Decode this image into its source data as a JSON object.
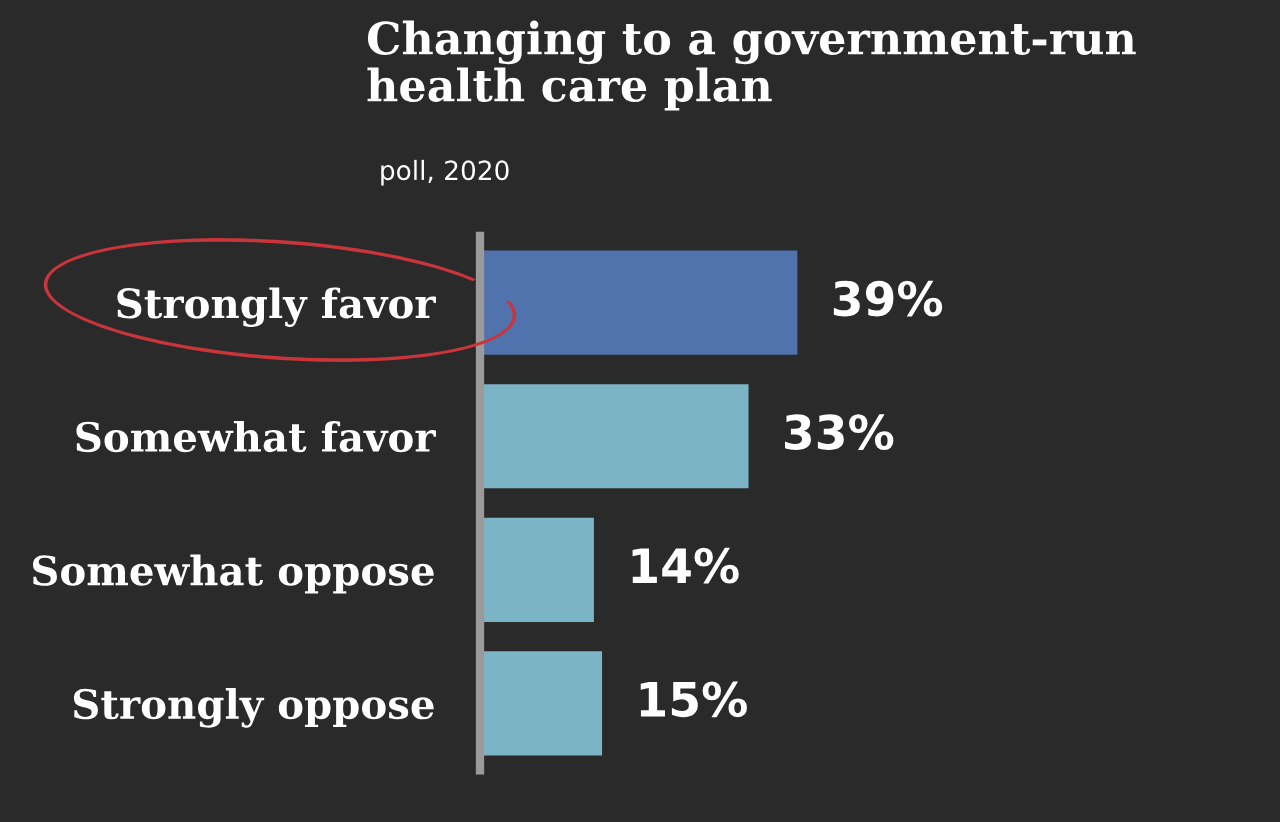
{
  "chart_data": {
    "type": "bar",
    "orientation": "horizontal",
    "title": "Changing to a government-run\nhealth care plan",
    "subtitle": "poll, 2020",
    "categories": [
      "Strongly favor",
      "Somewhat favor",
      "Somewhat oppose",
      "Strongly oppose"
    ],
    "values": [
      39,
      33,
      14,
      15
    ],
    "colors": [
      "#5173ad",
      "#7bb4c4",
      "#7bb4c4",
      "#7bb4c4"
    ],
    "value_labels": [
      "39%",
      "33%",
      "14%",
      "15%"
    ],
    "grid": false,
    "legend": false
  }
}
